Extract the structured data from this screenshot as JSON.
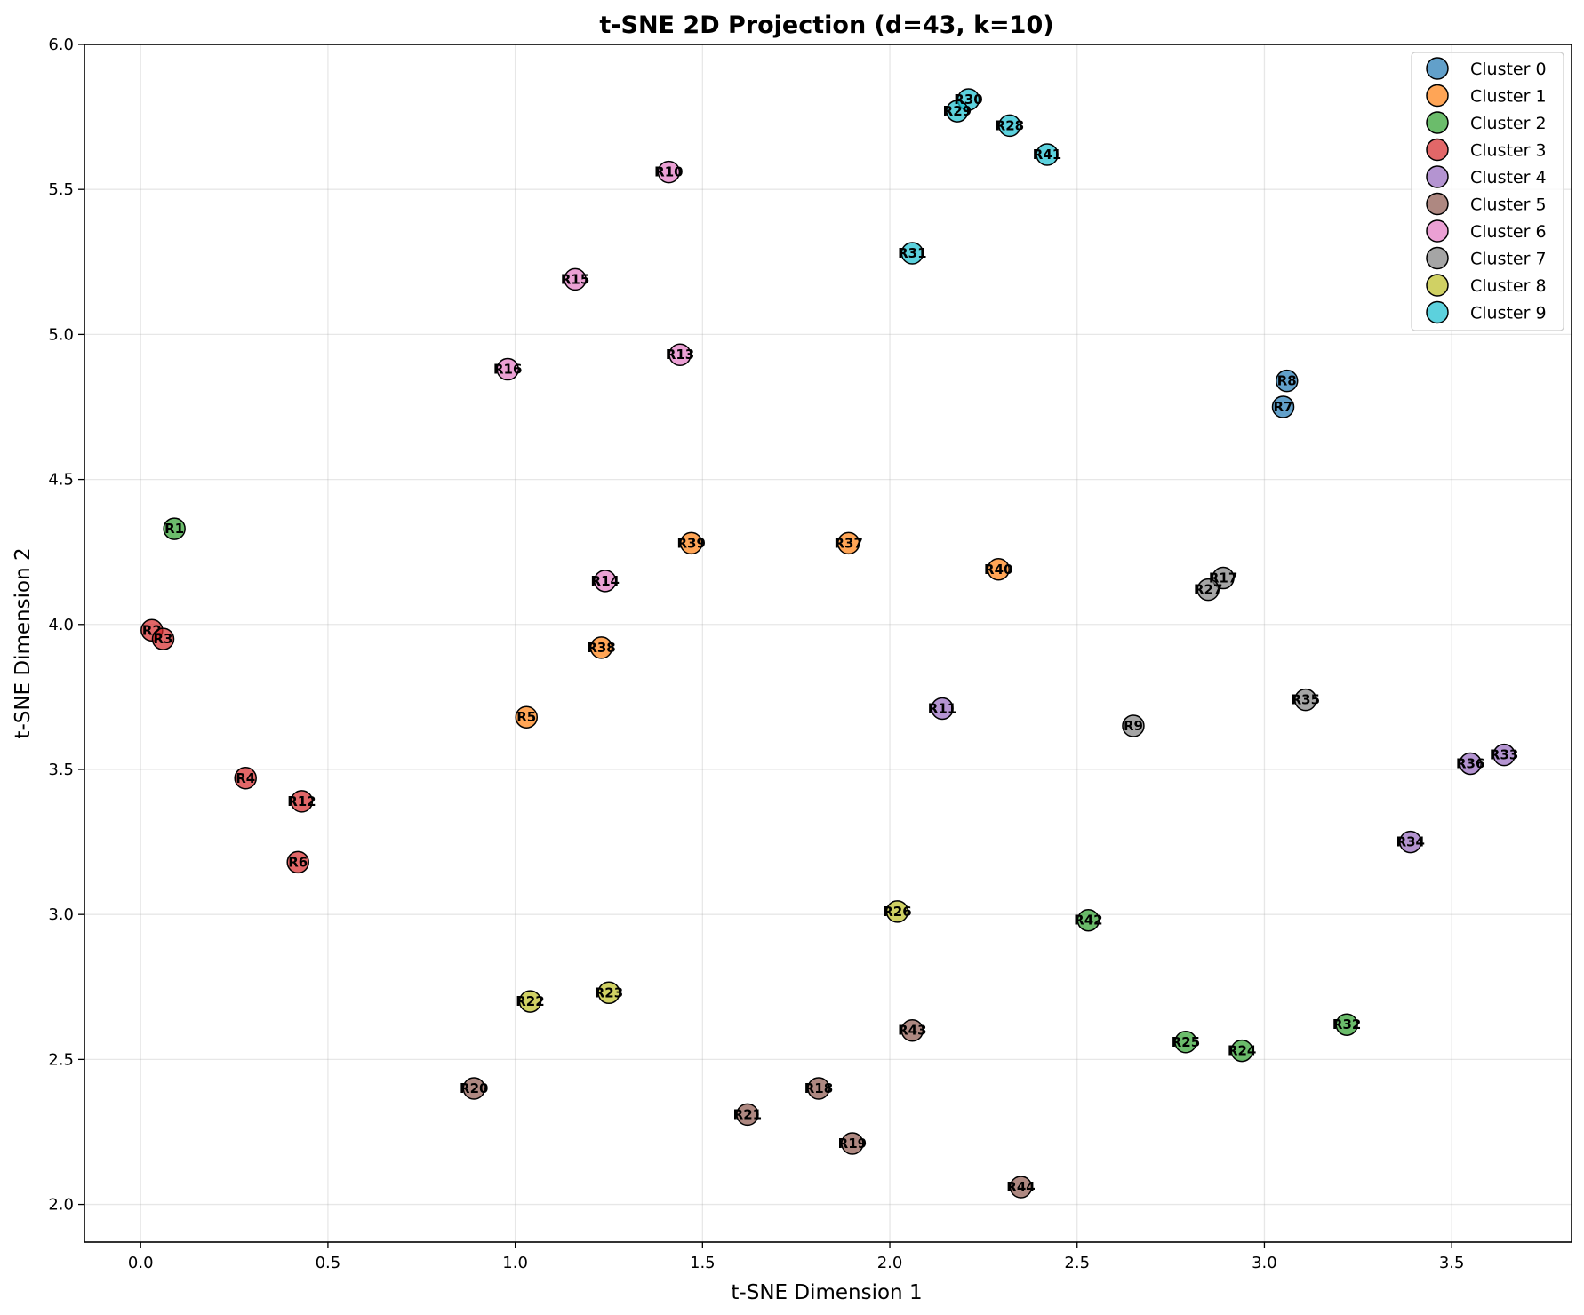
{
  "chart_data": {
    "type": "scatter",
    "title": "t-SNE 2D Projection (d=43, k=10)",
    "xlabel": "t-SNE Dimension 1",
    "ylabel": "t-SNE Dimension 2",
    "xlim": [
      -0.15,
      3.82
    ],
    "ylim": [
      1.87,
      6.0
    ],
    "xticks": [
      "0.0",
      "0.5",
      "1.0",
      "1.5",
      "2.0",
      "2.5",
      "3.0",
      "3.5"
    ],
    "yticks": [
      "2.0",
      "2.5",
      "3.0",
      "3.5",
      "4.0",
      "4.5",
      "5.0",
      "5.5",
      "6.0"
    ],
    "grid": true,
    "legend_position": "top-right",
    "series": [
      {
        "name": "Cluster 0",
        "color": "#1f77b4",
        "points": [
          {
            "label": "R8",
            "x": 3.06,
            "y": 4.84
          },
          {
            "label": "R7",
            "x": 3.05,
            "y": 4.75
          }
        ]
      },
      {
        "name": "Cluster 1",
        "color": "#ff7f0e",
        "points": [
          {
            "label": "R39",
            "x": 1.47,
            "y": 4.28
          },
          {
            "label": "R37",
            "x": 1.89,
            "y": 4.28
          },
          {
            "label": "R40",
            "x": 2.29,
            "y": 4.19
          },
          {
            "label": "R38",
            "x": 1.23,
            "y": 3.92
          },
          {
            "label": "R5",
            "x": 1.03,
            "y": 3.68
          }
        ]
      },
      {
        "name": "Cluster 2",
        "color": "#2ca02c",
        "points": [
          {
            "label": "R1",
            "x": 0.09,
            "y": 4.33
          },
          {
            "label": "R42",
            "x": 2.53,
            "y": 2.98
          },
          {
            "label": "R32",
            "x": 3.22,
            "y": 2.62
          },
          {
            "label": "R25",
            "x": 2.79,
            "y": 2.56
          },
          {
            "label": "R24",
            "x": 2.94,
            "y": 2.53
          }
        ]
      },
      {
        "name": "Cluster 3",
        "color": "#d62728",
        "points": [
          {
            "label": "R2",
            "x": 0.03,
            "y": 3.98
          },
          {
            "label": "R3",
            "x": 0.06,
            "y": 3.95
          },
          {
            "label": "R4",
            "x": 0.28,
            "y": 3.47
          },
          {
            "label": "R12",
            "x": 0.43,
            "y": 3.39
          },
          {
            "label": "R6",
            "x": 0.42,
            "y": 3.18
          }
        ]
      },
      {
        "name": "Cluster 4",
        "color": "#9467bd",
        "points": [
          {
            "label": "R11",
            "x": 2.14,
            "y": 3.71
          },
          {
            "label": "R33",
            "x": 3.64,
            "y": 3.55
          },
          {
            "label": "R36",
            "x": 3.55,
            "y": 3.52
          },
          {
            "label": "R34",
            "x": 3.39,
            "y": 3.25
          }
        ]
      },
      {
        "name": "Cluster 5",
        "color": "#8c564b",
        "points": [
          {
            "label": "R43",
            "x": 2.06,
            "y": 2.6
          },
          {
            "label": "R20",
            "x": 0.89,
            "y": 2.4
          },
          {
            "label": "R18",
            "x": 1.81,
            "y": 2.4
          },
          {
            "label": "R21",
            "x": 1.62,
            "y": 2.31
          },
          {
            "label": "R19",
            "x": 1.9,
            "y": 2.21
          },
          {
            "label": "R44",
            "x": 2.35,
            "y": 2.06
          }
        ]
      },
      {
        "name": "Cluster 6",
        "color": "#e377c2",
        "points": [
          {
            "label": "R10",
            "x": 1.41,
            "y": 5.56
          },
          {
            "label": "R15",
            "x": 1.16,
            "y": 5.19
          },
          {
            "label": "R13",
            "x": 1.44,
            "y": 4.93
          },
          {
            "label": "R16",
            "x": 0.98,
            "y": 4.88
          },
          {
            "label": "R14",
            "x": 1.24,
            "y": 4.15
          }
        ]
      },
      {
        "name": "Cluster 7",
        "color": "#7f7f7f",
        "points": [
          {
            "label": "R17",
            "x": 2.89,
            "y": 4.16
          },
          {
            "label": "R27",
            "x": 2.85,
            "y": 4.12
          },
          {
            "label": "R35",
            "x": 3.11,
            "y": 3.74
          },
          {
            "label": "R9",
            "x": 2.65,
            "y": 3.65
          }
        ]
      },
      {
        "name": "Cluster 8",
        "color": "#bcbd22",
        "points": [
          {
            "label": "R26",
            "x": 2.02,
            "y": 3.01
          },
          {
            "label": "R23",
            "x": 1.25,
            "y": 2.73
          },
          {
            "label": "R22",
            "x": 1.04,
            "y": 2.7
          }
        ]
      },
      {
        "name": "Cluster 9",
        "color": "#17becf",
        "points": [
          {
            "label": "R30",
            "x": 2.21,
            "y": 5.81
          },
          {
            "label": "R29",
            "x": 2.18,
            "y": 5.77
          },
          {
            "label": "R28",
            "x": 2.32,
            "y": 5.72
          },
          {
            "label": "R41",
            "x": 2.42,
            "y": 5.62
          },
          {
            "label": "R31",
            "x": 2.06,
            "y": 5.28
          }
        ]
      }
    ]
  }
}
